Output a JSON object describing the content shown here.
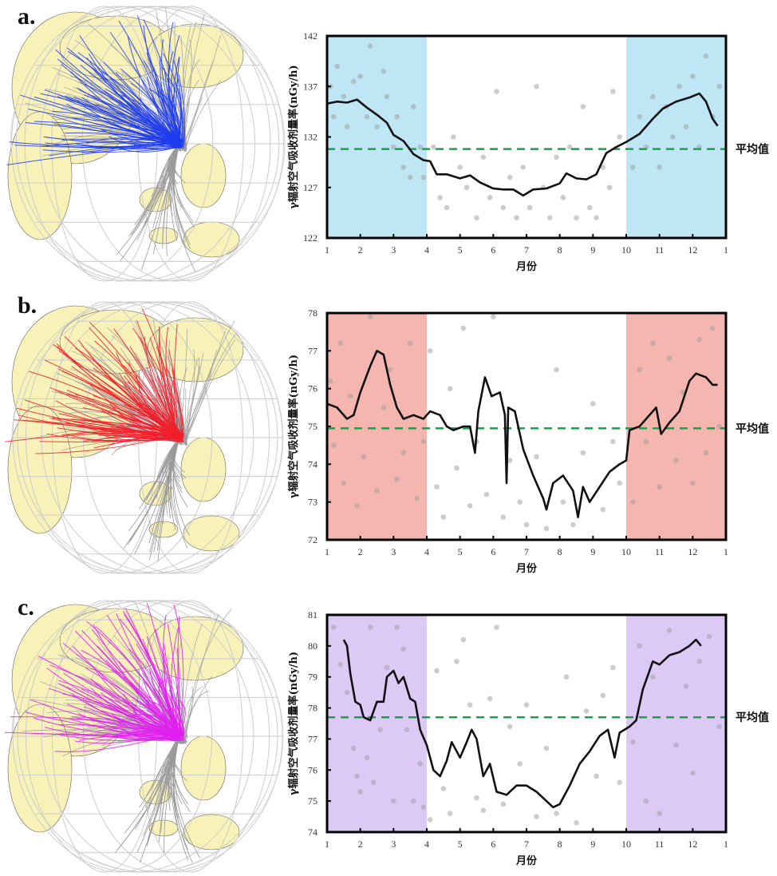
{
  "panels": [
    "a.",
    "b.",
    "c."
  ],
  "globes": [
    {
      "trajectory_color": "#1f3cf0",
      "other_color": "#9a9a9a"
    },
    {
      "trajectory_color": "#f0202a",
      "other_color": "#9a9a9a"
    },
    {
      "trajectory_color": "#e020f0",
      "other_color": "#9a9a9a"
    }
  ],
  "land_color": "#f8f2b8",
  "chart_data": [
    {
      "type": "line",
      "ylabel": "γ辐射空气吸收剂量率(nGy/h)",
      "xlabel": "月份",
      "mean_label": "平均值",
      "x_tick_labels": [
        "1",
        "2",
        "3",
        "4",
        "5",
        "6",
        "7",
        "8",
        "9",
        "10",
        "11",
        "12",
        "1"
      ],
      "xlim": [
        1,
        13
      ],
      "ylim": [
        122,
        142
      ],
      "y_ticks": [
        122,
        127,
        132,
        137,
        142
      ],
      "shaded_ranges": [
        [
          1,
          4
        ],
        [
          10,
          13
        ]
      ],
      "shade_color": "#bfe6f5",
      "mean": 130.8,
      "mean_color": "#1aa24a",
      "line": [
        [
          1,
          135.3
        ],
        [
          1.3,
          135.5
        ],
        [
          1.6,
          135.4
        ],
        [
          1.9,
          135.7
        ],
        [
          2.2,
          134.9
        ],
        [
          2.5,
          134.2
        ],
        [
          2.8,
          133.4
        ],
        [
          3,
          132.2
        ],
        [
          3.3,
          131.6
        ],
        [
          3.6,
          130.3
        ],
        [
          3.9,
          129.7
        ],
        [
          4.1,
          129.6
        ],
        [
          4.3,
          128.3
        ],
        [
          4.6,
          128.3
        ],
        [
          5,
          127.9
        ],
        [
          5.3,
          128.2
        ],
        [
          5.6,
          127.5
        ],
        [
          6,
          126.9
        ],
        [
          6.3,
          126.8
        ],
        [
          6.6,
          126.8
        ],
        [
          6.9,
          126.2
        ],
        [
          7.2,
          126.8
        ],
        [
          7.6,
          126.9
        ],
        [
          8,
          127.4
        ],
        [
          8.2,
          128.4
        ],
        [
          8.5,
          127.9
        ],
        [
          8.8,
          127.8
        ],
        [
          9.1,
          128.3
        ],
        [
          9.4,
          130.4
        ],
        [
          9.7,
          131.0
        ],
        [
          10,
          131.5
        ],
        [
          10.4,
          132.3
        ],
        [
          10.8,
          133.8
        ],
        [
          11.1,
          134.8
        ],
        [
          11.5,
          135.5
        ],
        [
          11.9,
          135.9
        ],
        [
          12.2,
          136.3
        ],
        [
          12.4,
          135.5
        ],
        [
          12.6,
          133.8
        ],
        [
          12.75,
          133.1
        ]
      ],
      "points": [
        [
          1.1,
          137
        ],
        [
          1.2,
          134
        ],
        [
          1.3,
          139
        ],
        [
          1.5,
          136
        ],
        [
          1.6,
          133
        ],
        [
          1.8,
          137.5
        ],
        [
          2,
          138
        ],
        [
          2.2,
          134
        ],
        [
          2.3,
          141
        ],
        [
          2.5,
          133
        ],
        [
          2.7,
          138.5
        ],
        [
          2.8,
          136
        ],
        [
          3,
          131
        ],
        [
          3.1,
          134
        ],
        [
          3.3,
          129
        ],
        [
          3.5,
          128
        ],
        [
          3.6,
          135
        ],
        [
          3.8,
          131
        ],
        [
          3.9,
          128
        ],
        [
          4.2,
          131
        ],
        [
          4.4,
          126
        ],
        [
          4.6,
          125
        ],
        [
          4.8,
          132
        ],
        [
          5,
          129
        ],
        [
          5.2,
          127
        ],
        [
          5.5,
          124
        ],
        [
          5.7,
          130
        ],
        [
          5.9,
          126
        ],
        [
          6.1,
          136.5
        ],
        [
          6.3,
          125
        ],
        [
          6.5,
          128
        ],
        [
          6.7,
          124
        ],
        [
          6.9,
          129
        ],
        [
          7.1,
          125
        ],
        [
          7.3,
          137
        ],
        [
          7.5,
          127
        ],
        [
          7.7,
          124
        ],
        [
          7.9,
          130
        ],
        [
          8.1,
          126
        ],
        [
          8.3,
          131
        ],
        [
          8.5,
          124
        ],
        [
          8.7,
          135
        ],
        [
          8.9,
          125
        ],
        [
          9.1,
          124
        ],
        [
          9.3,
          129
        ],
        [
          9.5,
          127
        ],
        [
          9.6,
          136.5
        ],
        [
          9.8,
          132
        ],
        [
          10.2,
          129
        ],
        [
          10.4,
          134
        ],
        [
          10.6,
          131
        ],
        [
          10.8,
          136
        ],
        [
          11,
          129
        ],
        [
          11.2,
          135
        ],
        [
          11.4,
          132
        ],
        [
          11.6,
          137
        ],
        [
          11.8,
          133
        ],
        [
          12,
          138
        ],
        [
          12.2,
          131
        ],
        [
          12.4,
          140
        ],
        [
          12.6,
          134
        ],
        [
          12.8,
          137
        ]
      ]
    },
    {
      "type": "line",
      "ylabel": "γ辐射空气吸收剂量率(nGy/h)",
      "xlabel": "月份",
      "mean_label": "平均值",
      "x_tick_labels": [
        "1",
        "2",
        "3",
        "4",
        "5",
        "6",
        "7",
        "8",
        "9",
        "10",
        "11",
        "12",
        "1"
      ],
      "xlim": [
        1,
        13
      ],
      "ylim": [
        72,
        78
      ],
      "y_ticks": [
        72,
        73,
        74,
        75,
        76,
        77,
        78
      ],
      "shaded_ranges": [
        [
          1,
          4
        ],
        [
          10,
          13
        ]
      ],
      "shade_color": "#f6b6b0",
      "mean": 74.95,
      "mean_color": "#1aa24a",
      "line": [
        [
          1,
          75.6
        ],
        [
          1.3,
          75.5
        ],
        [
          1.6,
          75.2
        ],
        [
          1.8,
          75.3
        ],
        [
          2,
          75.9
        ],
        [
          2.3,
          76.6
        ],
        [
          2.5,
          77.0
        ],
        [
          2.7,
          76.9
        ],
        [
          2.9,
          76.1
        ],
        [
          3.1,
          75.5
        ],
        [
          3.3,
          75.2
        ],
        [
          3.6,
          75.3
        ],
        [
          3.9,
          75.2
        ],
        [
          4.1,
          75.4
        ],
        [
          4.4,
          75.3
        ],
        [
          4.6,
          75.0
        ],
        [
          4.8,
          74.9
        ],
        [
          5.1,
          75.0
        ],
        [
          5.3,
          75.0
        ],
        [
          5.45,
          74.3
        ],
        [
          5.55,
          75.4
        ],
        [
          5.75,
          76.3
        ],
        [
          5.95,
          75.8
        ],
        [
          6.2,
          75.9
        ],
        [
          6.35,
          75.3
        ],
        [
          6.4,
          73.5
        ],
        [
          6.45,
          75.5
        ],
        [
          6.65,
          75.4
        ],
        [
          6.9,
          74.4
        ],
        [
          7.2,
          73.7
        ],
        [
          7.5,
          73.1
        ],
        [
          7.6,
          72.8
        ],
        [
          7.8,
          73.5
        ],
        [
          8.1,
          73.7
        ],
        [
          8.4,
          73.3
        ],
        [
          8.55,
          72.6
        ],
        [
          8.7,
          73.4
        ],
        [
          8.9,
          73.0
        ],
        [
          9.2,
          73.4
        ],
        [
          9.5,
          73.8
        ],
        [
          9.8,
          74.0
        ],
        [
          10,
          74.1
        ],
        [
          10.1,
          74.9
        ],
        [
          10.4,
          75.0
        ],
        [
          10.7,
          75.3
        ],
        [
          10.9,
          75.5
        ],
        [
          11.05,
          74.8
        ],
        [
          11.3,
          75.1
        ],
        [
          11.6,
          75.4
        ],
        [
          11.9,
          76.2
        ],
        [
          12.1,
          76.4
        ],
        [
          12.4,
          76.3
        ],
        [
          12.6,
          76.1
        ],
        [
          12.75,
          76.1
        ]
      ],
      "points": [
        [
          1.1,
          76.2
        ],
        [
          1.2,
          74.5
        ],
        [
          1.4,
          77.2
        ],
        [
          1.5,
          73.5
        ],
        [
          1.7,
          75.8
        ],
        [
          1.9,
          72.9
        ],
        [
          2.1,
          74.2
        ],
        [
          2.3,
          77.9
        ],
        [
          2.5,
          73.3
        ],
        [
          2.7,
          75.5
        ],
        [
          2.9,
          76.5
        ],
        [
          3.1,
          73.6
        ],
        [
          3.3,
          74.3
        ],
        [
          3.5,
          77.2
        ],
        [
          3.7,
          73.1
        ],
        [
          3.9,
          74.6
        ],
        [
          4.1,
          77.0
        ],
        [
          4.3,
          73.4
        ],
        [
          4.5,
          72.6
        ],
        [
          4.7,
          76.0
        ],
        [
          4.9,
          73.9
        ],
        [
          5.1,
          77.6
        ],
        [
          5.3,
          72.9
        ],
        [
          5.5,
          74.6
        ],
        [
          5.8,
          73.2
        ],
        [
          6.0,
          77.9
        ],
        [
          6.3,
          72.6
        ],
        [
          6.5,
          74.1
        ],
        [
          6.8,
          73.0
        ],
        [
          7.0,
          72.4
        ],
        [
          7.3,
          74.2
        ],
        [
          7.6,
          72.3
        ],
        [
          7.9,
          76.5
        ],
        [
          8.1,
          73.0
        ],
        [
          8.4,
          72.4
        ],
        [
          8.7,
          74.3
        ],
        [
          9.0,
          75.6
        ],
        [
          9.3,
          72.8
        ],
        [
          9.6,
          74.6
        ],
        [
          9.8,
          73.5
        ],
        [
          10.2,
          73.0
        ],
        [
          10.4,
          76.5
        ],
        [
          10.6,
          74.6
        ],
        [
          10.8,
          77.2
        ],
        [
          11.0,
          73.4
        ],
        [
          11.3,
          76.8
        ],
        [
          11.5,
          74.1
        ],
        [
          11.7,
          75.9
        ],
        [
          12.0,
          73.5
        ],
        [
          12.2,
          77.3
        ],
        [
          12.4,
          74.3
        ],
        [
          12.6,
          77.6
        ],
        [
          12.8,
          75.0
        ]
      ]
    },
    {
      "type": "line",
      "ylabel": "γ辐射空气吸收剂量率(nGy/h)",
      "xlabel": "月份",
      "mean_label": "平均值",
      "x_tick_labels": [
        "1",
        "2",
        "3",
        "4",
        "5",
        "6",
        "7",
        "8",
        "9",
        "10",
        "11",
        "12",
        "1"
      ],
      "xlim": [
        1,
        13
      ],
      "ylim": [
        74,
        81
      ],
      "y_ticks": [
        74,
        75,
        76,
        77,
        78,
        79,
        80,
        81
      ],
      "shaded_ranges": [
        [
          1,
          4
        ],
        [
          10,
          13
        ]
      ],
      "shade_color": "#dcc9f6",
      "mean": 77.7,
      "mean_color": "#1aa24a",
      "line": [
        [
          1.5,
          80.2
        ],
        [
          1.6,
          80.0
        ],
        [
          1.7,
          79.1
        ],
        [
          1.85,
          78.2
        ],
        [
          2,
          78.1
        ],
        [
          2.1,
          77.7
        ],
        [
          2.3,
          77.6
        ],
        [
          2.5,
          78.2
        ],
        [
          2.7,
          78.2
        ],
        [
          2.8,
          79.0
        ],
        [
          3,
          79.2
        ],
        [
          3.15,
          78.8
        ],
        [
          3.3,
          79.0
        ],
        [
          3.5,
          78.3
        ],
        [
          3.65,
          78.2
        ],
        [
          3.8,
          77.3
        ],
        [
          4,
          76.8
        ],
        [
          4.2,
          76.0
        ],
        [
          4.4,
          75.8
        ],
        [
          4.6,
          76.3
        ],
        [
          4.75,
          76.9
        ],
        [
          5,
          76.4
        ],
        [
          5.2,
          76.9
        ],
        [
          5.35,
          77.3
        ],
        [
          5.5,
          77.0
        ],
        [
          5.7,
          75.8
        ],
        [
          5.9,
          76.2
        ],
        [
          6.1,
          75.3
        ],
        [
          6.4,
          75.2
        ],
        [
          6.7,
          75.5
        ],
        [
          7,
          75.5
        ],
        [
          7.3,
          75.3
        ],
        [
          7.6,
          75.0
        ],
        [
          7.8,
          74.8
        ],
        [
          8,
          74.9
        ],
        [
          8.3,
          75.5
        ],
        [
          8.6,
          76.2
        ],
        [
          8.9,
          76.6
        ],
        [
          9.2,
          77.1
        ],
        [
          9.45,
          77.3
        ],
        [
          9.65,
          76.4
        ],
        [
          9.8,
          77.2
        ],
        [
          10.1,
          77.4
        ],
        [
          10.3,
          77.6
        ],
        [
          10.5,
          78.6
        ],
        [
          10.8,
          79.5
        ],
        [
          11,
          79.4
        ],
        [
          11.3,
          79.7
        ],
        [
          11.6,
          79.8
        ],
        [
          11.9,
          80.0
        ],
        [
          12.1,
          80.2
        ],
        [
          12.25,
          80.0
        ]
      ],
      "points": [
        [
          1.2,
          80.6
        ],
        [
          1.4,
          79.4
        ],
        [
          1.6,
          78.5
        ],
        [
          1.8,
          76.7
        ],
        [
          1.9,
          75.8
        ],
        [
          2.0,
          75.3
        ],
        [
          2.2,
          76.4
        ],
        [
          2.3,
          80.6
        ],
        [
          2.4,
          75.6
        ],
        [
          2.6,
          77.3
        ],
        [
          2.8,
          79.3
        ],
        [
          3.0,
          75.0
        ],
        [
          3.1,
          80.6
        ],
        [
          3.3,
          79.9
        ],
        [
          3.4,
          77.3
        ],
        [
          3.6,
          75.0
        ],
        [
          3.8,
          76.2
        ],
        [
          3.9,
          74.8
        ],
        [
          4.1,
          74.4
        ],
        [
          4.3,
          79.2
        ],
        [
          4.5,
          75.4
        ],
        [
          4.7,
          74.6
        ],
        [
          4.9,
          79.5
        ],
        [
          5.1,
          80.2
        ],
        [
          5.3,
          78.1
        ],
        [
          5.5,
          75.1
        ],
        [
          5.7,
          74.7
        ],
        [
          5.9,
          78.3
        ],
        [
          6.1,
          80.6
        ],
        [
          6.3,
          74.9
        ],
        [
          6.5,
          77.4
        ],
        [
          6.8,
          76.2
        ],
        [
          7.0,
          78.1
        ],
        [
          7.3,
          74.5
        ],
        [
          7.6,
          76.7
        ],
        [
          7.9,
          74.6
        ],
        [
          8.2,
          79.0
        ],
        [
          8.5,
          74.3
        ],
        [
          8.8,
          77.9
        ],
        [
          9.1,
          75.8
        ],
        [
          9.3,
          78.4
        ],
        [
          9.6,
          79.3
        ],
        [
          9.8,
          75.6
        ],
        [
          10.2,
          76.9
        ],
        [
          10.4,
          80.0
        ],
        [
          10.6,
          75.0
        ],
        [
          10.8,
          79.0
        ],
        [
          11.0,
          74.6
        ],
        [
          11.3,
          80.5
        ],
        [
          11.5,
          76.8
        ],
        [
          11.8,
          78.7
        ],
        [
          12.0,
          75.9
        ],
        [
          12.2,
          79.5
        ],
        [
          12.5,
          80.3
        ],
        [
          12.8,
          77.4
        ]
      ]
    }
  ]
}
